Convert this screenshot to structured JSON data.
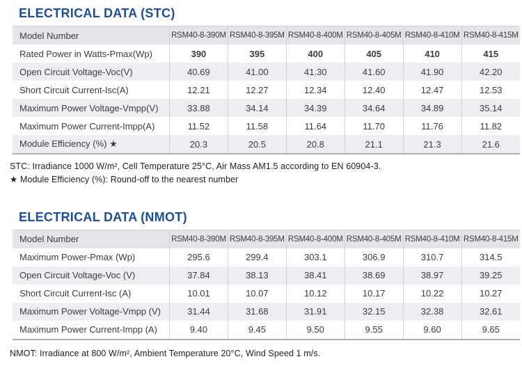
{
  "accent_color": "#1a4e9e",
  "header_bg_color": "#e3e5e9",
  "stripe_bg_color": "#eceef2",
  "sections": [
    {
      "title": "ELECTRICAL DATA (STC)",
      "table": {
        "header": [
          "Model Number",
          "RSM40-8-390M",
          "RSM40-8-395M",
          "RSM40-8-400M",
          "RSM40-8-405M",
          "RSM40-8-410M",
          "RSM40-8-415M"
        ],
        "rows": [
          {
            "label": "Rated Power in Watts-Pmax(Wp)",
            "bold": true,
            "values": [
              "390",
              "395",
              "400",
              "405",
              "410",
              "415"
            ]
          },
          {
            "label": "Open Circuit Voltage-Voc(V)",
            "bold": false,
            "values": [
              "40.69",
              "41.00",
              "41.30",
              "41.60",
              "41.90",
              "42.20"
            ]
          },
          {
            "label": "Short Circuit Current-Isc(A)",
            "bold": false,
            "values": [
              "12.21",
              "12.27",
              "12.34",
              "12.40",
              "12.47",
              "12.53"
            ]
          },
          {
            "label": "Maximum Power Voltage-Vmpp(V)",
            "bold": false,
            "values": [
              "33.88",
              "34.14",
              "34.39",
              "34.64",
              "34.89",
              "35.14"
            ]
          },
          {
            "label": "Maximum Power Current-Impp(A)",
            "bold": false,
            "values": [
              "11.52",
              "11.58",
              "11.64",
              "11.70",
              "11.76",
              "11.82"
            ]
          },
          {
            "label": "Module Efficiency (%) ★",
            "bold": false,
            "values": [
              "20.3",
              "20.5",
              "20.8",
              "21.1",
              "21.3",
              "21.6"
            ]
          }
        ]
      },
      "footnotes": [
        "STC: Irradiance 1000 W/m², Cell Temperature 25°C, Air Mass AM1.5 according to EN 60904-3.",
        "★ Module Efficiency (%): Round-off to the nearest number"
      ]
    },
    {
      "title": "ELECTRICAL DATA (NMOT)",
      "table": {
        "header": [
          "Model Number",
          "RSM40-8-390M",
          "RSM40-8-395M",
          "RSM40-8-400M",
          "RSM40-8-405M",
          "RSM40-8-410M",
          "RSM40-8-415M"
        ],
        "rows": [
          {
            "label": "Maximum Power-Pmax (Wp)",
            "bold": false,
            "values": [
              "295.6",
              "299.4",
              "303.1",
              "306.9",
              "310.7",
              "314.5"
            ]
          },
          {
            "label": "Open Circuit Voltage-Voc (V)",
            "bold": false,
            "values": [
              "37.84",
              "38.13",
              "38.41",
              "38.69",
              "38.97",
              "39.25"
            ]
          },
          {
            "label": "Short Circuit Current-Isc (A)",
            "bold": false,
            "values": [
              "10.01",
              "10.07",
              "10.12",
              "10.17",
              "10.22",
              "10.27"
            ]
          },
          {
            "label": "Maximum Power Voltage-Vmpp (V)",
            "bold": false,
            "values": [
              "31.44",
              "31.68",
              "31.91",
              "32.15",
              "32.38",
              "32.61"
            ]
          },
          {
            "label": "Maximum Power Current-Impp (A)",
            "bold": false,
            "values": [
              "9.40",
              "9.45",
              "9.50",
              "9.55",
              "9.60",
              "9.65"
            ]
          }
        ]
      },
      "footnotes": [
        "NMOT: Irradiance at 800 W/m², Ambient Temperature 20°C, Wind Speed 1 m/s."
      ]
    }
  ]
}
